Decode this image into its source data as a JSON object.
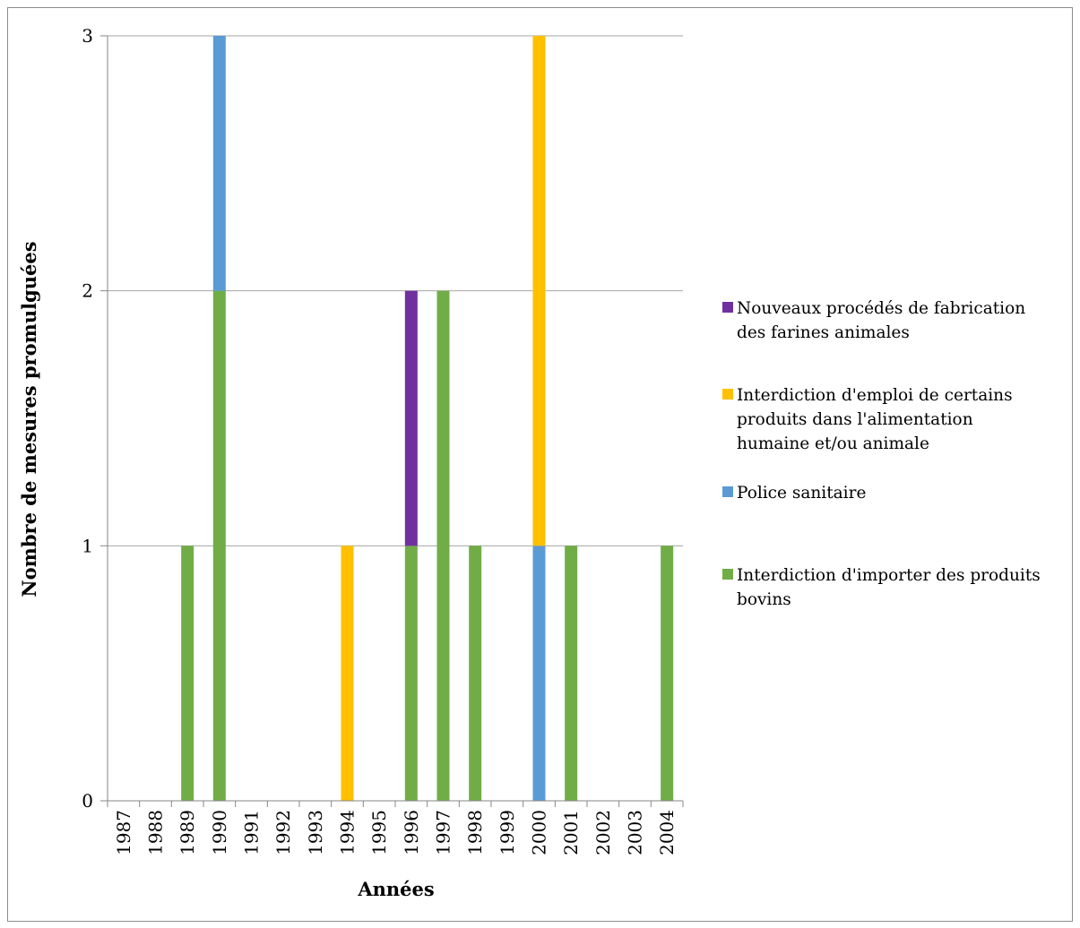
{
  "chart_data": {
    "type": "bar",
    "stacked": true,
    "title": "",
    "xlabel": "Années",
    "ylabel": "Nombre de mesures promulguées",
    "ylim": [
      0,
      3
    ],
    "yticks": [
      "0",
      "1",
      "2",
      "3"
    ],
    "grid": true,
    "legend_position": "right",
    "categories": [
      "1987",
      "1988",
      "1989",
      "1990",
      "1991",
      "1992",
      "1993",
      "1994",
      "1995",
      "1996",
      "1997",
      "1998",
      "1999",
      "2000",
      "2001",
      "2002",
      "2003",
      "2004"
    ],
    "series": [
      {
        "name": "Interdiction d'importer des produits bovins",
        "legend_lines": [
          "Interdiction d'importer des produits",
          "bovins"
        ],
        "color": "#70ad47",
        "values": [
          0,
          0,
          1,
          2,
          0,
          0,
          0,
          0,
          0,
          1,
          2,
          1,
          0,
          0,
          1,
          0,
          0,
          1
        ]
      },
      {
        "name": "Police sanitaire",
        "legend_lines": [
          "Police sanitaire"
        ],
        "color": "#5b9bd5",
        "values": [
          0,
          0,
          0,
          1,
          0,
          0,
          0,
          0,
          0,
          0,
          0,
          0,
          0,
          1,
          0,
          0,
          0,
          0
        ]
      },
      {
        "name": "Interdiction d'emploi de certains produits dans l'alimentation humaine et/ou animale",
        "legend_lines": [
          "Interdiction d'emploi de certains",
          "produits dans l'alimentation",
          "humaine et/ou animale"
        ],
        "color": "#ffc000",
        "values": [
          0,
          0,
          0,
          0,
          0,
          0,
          0,
          1,
          0,
          0,
          0,
          0,
          0,
          2,
          0,
          0,
          0,
          0
        ]
      },
      {
        "name": "Nouveaux procédés de fabrication des farines animales",
        "legend_lines": [
          "Nouveaux procédés de fabrication",
          "des farines animales"
        ],
        "color": "#7030a0",
        "values": [
          0,
          0,
          0,
          0,
          0,
          0,
          0,
          0,
          0,
          1,
          0,
          0,
          0,
          0,
          0,
          0,
          0,
          0
        ]
      }
    ]
  }
}
